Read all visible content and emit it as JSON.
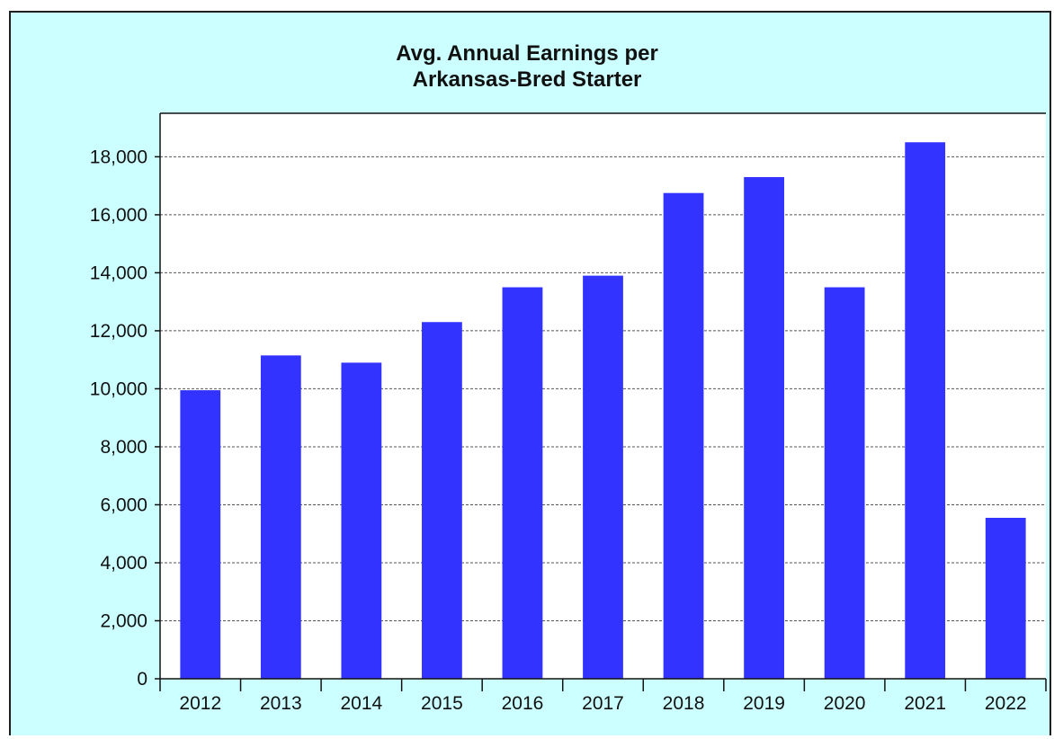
{
  "chart_data": {
    "type": "bar",
    "title_lines": [
      "Avg. Annual Earnings per",
      "Arkansas-Bred Starter"
    ],
    "xlabel": "",
    "ylabel": "",
    "categories": [
      "2012",
      "2013",
      "2014",
      "2015",
      "2016",
      "2017",
      "2018",
      "2019",
      "2020",
      "2021",
      "2022"
    ],
    "values": [
      9950,
      11150,
      10900,
      12300,
      13500,
      13900,
      16750,
      17300,
      13500,
      18500,
      5550
    ],
    "ylim": [
      0,
      19500
    ],
    "yticks": [
      0,
      2000,
      4000,
      6000,
      8000,
      10000,
      12000,
      14000,
      16000,
      18000
    ],
    "ytick_labels": [
      "0",
      "2,000",
      "4,000",
      "6,000",
      "8,000",
      "10,000",
      "12,000",
      "14,000",
      "16,000",
      "18,000"
    ],
    "grid": true,
    "colors": {
      "bar": "#3333ff",
      "panel_background": "#ccffff",
      "plot_background": "#ffffff",
      "grid": "#555555"
    }
  }
}
